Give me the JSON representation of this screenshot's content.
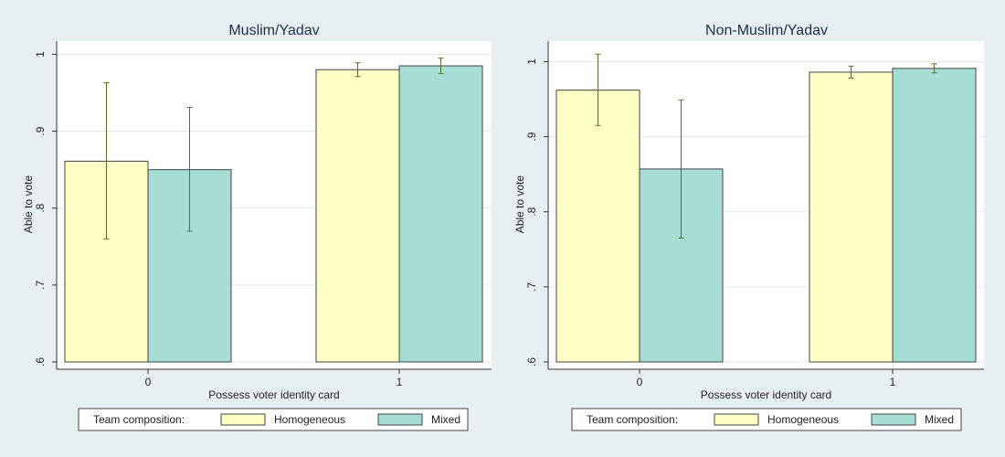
{
  "chart_data": [
    {
      "type": "bar",
      "title": "Muslim/Yadav",
      "xlabel": "Possess voter identity card",
      "ylabel": "Able to vote",
      "ylim": [
        0.6,
        1.01
      ],
      "yticks": [
        0.6,
        0.7,
        0.8,
        0.9,
        1
      ],
      "ytick_labels": [
        ".6",
        ".7",
        ".8",
        ".9",
        "1"
      ],
      "categories": [
        "0",
        "1"
      ],
      "series": [
        {
          "name": "Homogeneous",
          "color": "#ffffc6",
          "values": [
            0.861,
            0.98
          ],
          "ci_low": [
            0.76,
            0.971
          ],
          "ci_high": [
            0.963,
            0.989
          ]
        },
        {
          "name": "Mixed",
          "color": "#a6ddd4",
          "values": [
            0.85,
            0.985
          ],
          "ci_low": [
            0.77,
            0.975
          ],
          "ci_high": [
            0.931,
            0.995
          ]
        }
      ],
      "legend": {
        "title": "Team composition:",
        "entries": [
          "Homogeneous",
          "Mixed"
        ],
        "position": "bottom"
      }
    },
    {
      "type": "bar",
      "title": "Non-Muslim/Yadav",
      "xlabel": "Possess voter identity card",
      "ylabel": "Able to vote",
      "ylim": [
        0.6,
        1.02
      ],
      "yticks": [
        0.6,
        0.7,
        0.8,
        0.9,
        1
      ],
      "ytick_labels": [
        ".6",
        ".7",
        ".8",
        ".9",
        "1"
      ],
      "categories": [
        "0",
        "1"
      ],
      "series": [
        {
          "name": "Homogeneous",
          "color": "#ffffc6",
          "values": [
            0.962,
            0.986
          ],
          "ci_low": [
            0.915,
            0.978
          ],
          "ci_high": [
            1.01,
            0.994
          ]
        },
        {
          "name": "Mixed",
          "color": "#a6ddd4",
          "values": [
            0.857,
            0.991
          ],
          "ci_low": [
            0.765,
            0.985
          ],
          "ci_high": [
            0.949,
            0.997
          ]
        }
      ],
      "legend": {
        "title": "Team composition:",
        "entries": [
          "Homogeneous",
          "Mixed"
        ],
        "position": "bottom"
      }
    }
  ]
}
